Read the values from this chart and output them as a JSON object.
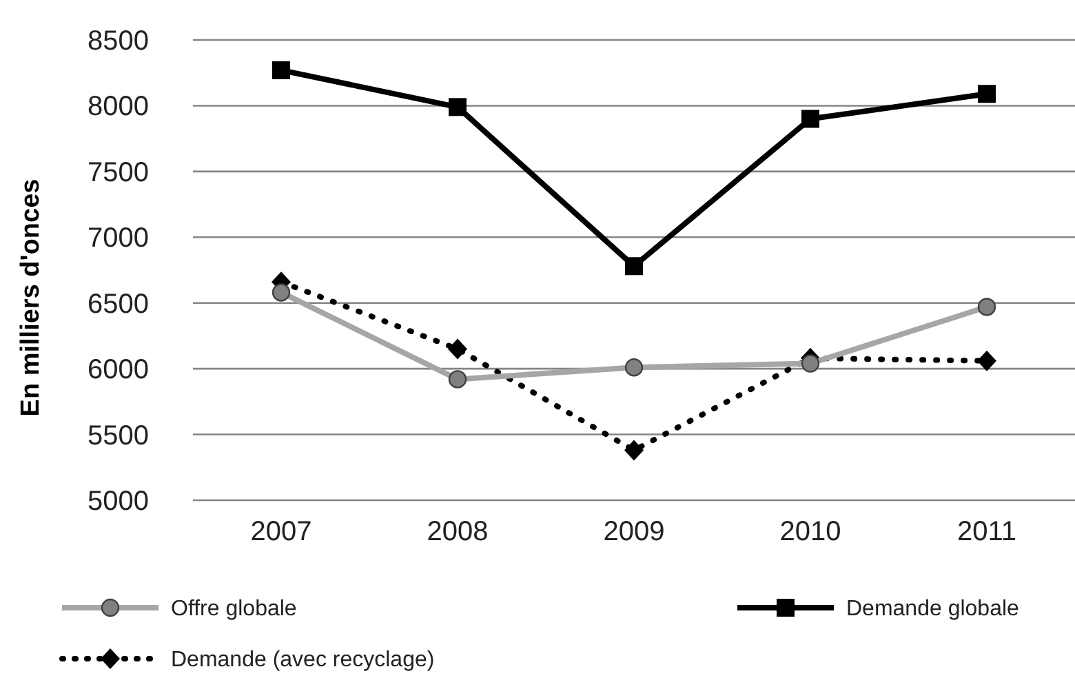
{
  "chart_data": {
    "type": "line",
    "ylabel": "En milliers d'onces",
    "categories": [
      "2007",
      "2008",
      "2009",
      "2010",
      "2011"
    ],
    "series": [
      {
        "name": "Offre globale",
        "color": "#a6a6a6",
        "marker": "circle",
        "line_style": "solid",
        "values": [
          6580,
          5920,
          6010,
          6040,
          6470
        ]
      },
      {
        "name": "Demande globale",
        "color": "#000000",
        "marker": "square",
        "line_style": "solid",
        "values": [
          8270,
          7990,
          6780,
          7900,
          8090
        ]
      },
      {
        "name": "Demande (avec recyclage)",
        "color": "#000000",
        "marker": "diamond",
        "line_style": "dotted",
        "values": [
          6660,
          6150,
          5380,
          6080,
          6060
        ]
      }
    ],
    "ylim": [
      5000,
      8500
    ],
    "yticks": [
      5000,
      5500,
      6000,
      6500,
      7000,
      7500,
      8000,
      8500
    ],
    "grid": "y",
    "legend": "bottom"
  }
}
